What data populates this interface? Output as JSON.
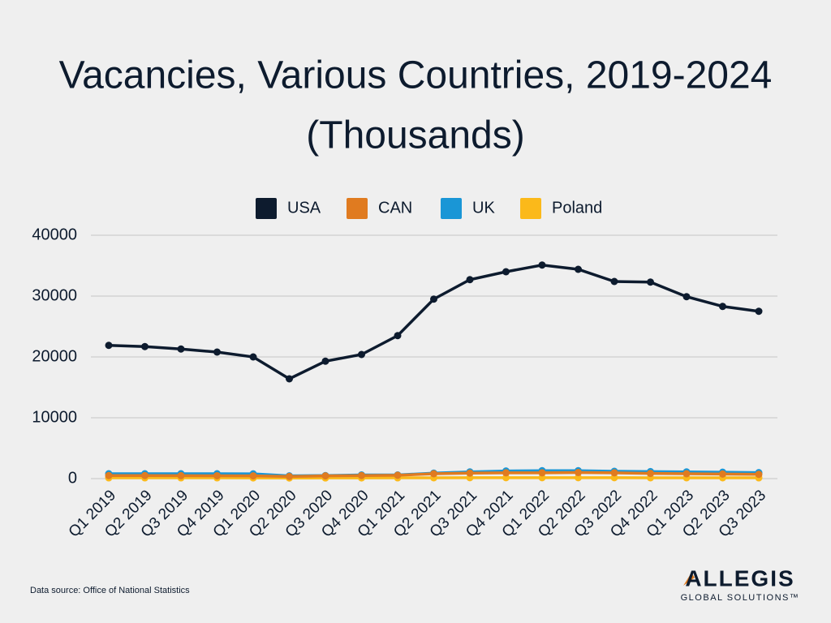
{
  "chart_data": {
    "type": "line",
    "title": [
      "Vacancies, Various Countries, 2019-2024",
      "(Thousands)"
    ],
    "categories": [
      "Q1 2019",
      "Q2 2019",
      "Q3 2019",
      "Q4 2019",
      "Q1 2020",
      "Q2 2020",
      "Q3 2020",
      "Q4 2020",
      "Q1 2021",
      "Q2 2021",
      "Q3 2021",
      "Q4 2021",
      "Q1 2022",
      "Q2 2022",
      "Q3 2022",
      "Q4 2022",
      "Q1 2023",
      "Q2 2023",
      "Q3 2023"
    ],
    "series": [
      {
        "name": "USA",
        "color": "#0d1b2e",
        "values": [
          21900,
          21700,
          21300,
          20800,
          20000,
          16400,
          19300,
          20400,
          23500,
          29500,
          32700,
          34000,
          35100,
          34400,
          32400,
          32300,
          29900,
          28300,
          27500
        ]
      },
      {
        "name": "CAN",
        "color": "#e07b20",
        "values": [
          500,
          500,
          480,
          470,
          450,
          350,
          450,
          500,
          550,
          800,
          900,
          950,
          950,
          1000,
          950,
          850,
          800,
          750,
          700
        ]
      },
      {
        "name": "UK",
        "color": "#1a96d6",
        "values": [
          800,
          800,
          800,
          800,
          780,
          450,
          500,
          600,
          600,
          900,
          1100,
          1250,
          1300,
          1300,
          1200,
          1150,
          1100,
          1050,
          980
        ]
      },
      {
        "name": "Poland",
        "color": "#fbb91a",
        "values": [
          130,
          130,
          130,
          130,
          120,
          100,
          110,
          120,
          130,
          140,
          150,
          150,
          150,
          150,
          150,
          140,
          140,
          140,
          130
        ]
      }
    ],
    "ylim": [
      0,
      40000
    ],
    "yticks": [
      0,
      10000,
      20000,
      30000,
      40000
    ],
    "grid": true,
    "legend": "top"
  },
  "footer": {
    "source": "Data source: Office of National Statistics",
    "logo": "ALLEGIS",
    "logo_sub": "GLOBAL SOLUTIONS™"
  }
}
